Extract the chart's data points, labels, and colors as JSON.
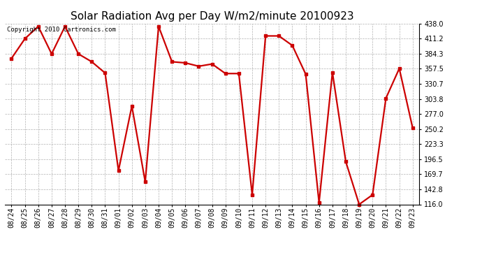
{
  "title": "Solar Radiation Avg per Day W/m2/minute 20100923",
  "copyright": "Copyright 2010 Cartronics.com",
  "dates": [
    "08/24",
    "08/25",
    "08/26",
    "08/27",
    "08/28",
    "08/29",
    "08/30",
    "08/31",
    "09/01",
    "09/02",
    "09/03",
    "09/04",
    "09/05",
    "09/06",
    "09/07",
    "09/08",
    "09/09",
    "09/10",
    "09/11",
    "09/12",
    "09/13",
    "09/14",
    "09/15",
    "09/16",
    "09/17",
    "09/18",
    "09/19",
    "09/20",
    "09/21",
    "09/22",
    "09/23"
  ],
  "values": [
    376.0,
    411.0,
    433.0,
    384.0,
    433.0,
    384.0,
    370.0,
    350.0,
    176.0,
    291.0,
    156.0,
    433.0,
    370.0,
    368.0,
    362.0,
    366.0,
    349.0,
    349.0,
    133.0,
    416.0,
    416.0,
    399.0,
    348.0,
    119.0,
    351.0,
    192.0,
    116.0,
    133.0,
    305.0,
    358.0,
    252.0
  ],
  "ylim_low": 116.0,
  "ylim_high": 438.0,
  "yticks": [
    116.0,
    142.8,
    169.7,
    196.5,
    223.3,
    250.2,
    277.0,
    303.8,
    330.7,
    357.5,
    384.3,
    411.2,
    438.0
  ],
  "line_color": "#cc0000",
  "marker_size": 2.8,
  "line_width": 1.6,
  "bg_color": "#ffffff",
  "grid_color": "#aaaaaa",
  "title_fontsize": 11,
  "tick_fontsize": 7,
  "copyright_fontsize": 6.5
}
